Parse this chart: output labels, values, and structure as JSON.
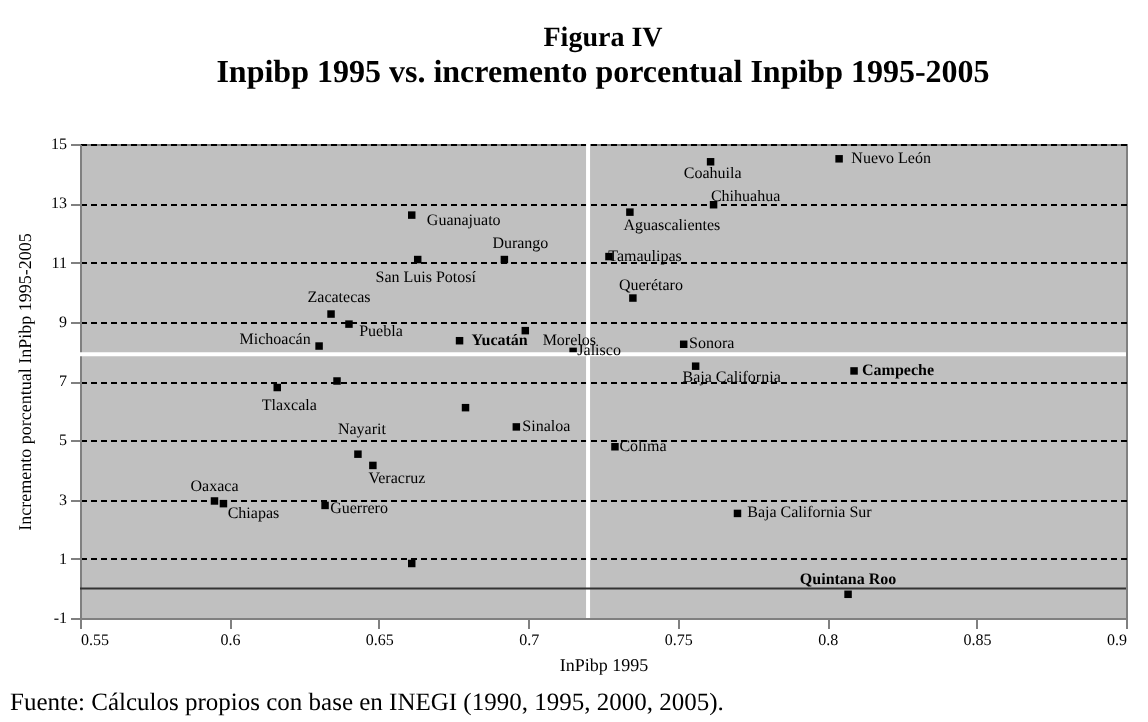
{
  "chart_data": {
    "type": "scatter",
    "title": "Figura IV",
    "subtitle": "Inpibp 1995 vs. incremento porcentual Inpibp 1995-2005",
    "xlabel": "InPibp 1995",
    "ylabel": "Incremento porcentual InPibp 1995-2005",
    "x": [
      0.661,
      0.663,
      0.692,
      0.634,
      0.64,
      0.63,
      0.677,
      0.699,
      0.715,
      0.616,
      0.696,
      0.643,
      0.648,
      0.595,
      0.598,
      0.632,
      0.761,
      0.804,
      0.762,
      0.734,
      0.727,
      0.735,
      0.752,
      0.756,
      0.809,
      0.729,
      0.77,
      0.807,
      0.636,
      0.679,
      0.661
    ],
    "series": [
      {
        "color": "#000000",
        "values": [
          12.6,
          11.1,
          11.1,
          9.26,
          8.92,
          8.18,
          8.36,
          8.7,
          8.0,
          6.78,
          5.45,
          4.53,
          4.15,
          2.95,
          2.86,
          2.8,
          14.4,
          14.5,
          12.95,
          12.7,
          11.2,
          9.8,
          8.24,
          7.5,
          7.34,
          4.78,
          2.53,
          -0.2,
          7.0,
          6.1,
          0.84
        ]
      }
    ],
    "marker": "square",
    "xlim": [
      0.55,
      0.9
    ],
    "xticks": [
      0.55,
      0.6,
      0.65,
      0.7,
      0.75,
      0.8,
      0.85,
      0.9
    ],
    "ylim": [
      -1,
      15
    ],
    "yticks": [
      -1,
      1,
      3,
      5,
      7,
      9,
      11,
      13,
      15
    ],
    "grid": "y",
    "ref_lines": [
      {
        "axis": "x",
        "value": 0.72,
        "color": "#ffffff"
      },
      {
        "axis": "y",
        "value": 7.9,
        "color": "#ffffff"
      },
      {
        "axis": "y",
        "value": 0,
        "color": "#333333"
      }
    ],
    "annotations": [
      {
        "text": "Guanajuato",
        "x": 0.661,
        "y": 12.6
      },
      {
        "text": "San Luis Potosí",
        "x": 0.663,
        "y": 11.1
      },
      {
        "text": "Durango",
        "x": 0.692,
        "y": 11.1
      },
      {
        "text": "Zacatecas",
        "x": 0.634,
        "y": 9.26
      },
      {
        "text": "Puebla",
        "x": 0.64,
        "y": 8.92
      },
      {
        "text": "Michoacán",
        "x": 0.63,
        "y": 8.18
      },
      {
        "text": "Yucatán",
        "x": 0.677,
        "y": 8.36
      },
      {
        "text": "Morelos",
        "x": 0.699,
        "y": 8.7
      },
      {
        "text": "Jalisco",
        "x": 0.715,
        "y": 8.0
      },
      {
        "text": "Tlaxcala",
        "x": 0.616,
        "y": 6.78
      },
      {
        "text": "Sinaloa",
        "x": 0.696,
        "y": 5.45
      },
      {
        "text": "Nayarit",
        "x": 0.643,
        "y": 4.53
      },
      {
        "text": "Veracruz",
        "x": 0.648,
        "y": 4.15
      },
      {
        "text": "Oaxaca",
        "x": 0.595,
        "y": 2.95
      },
      {
        "text": "Chiapas",
        "x": 0.598,
        "y": 2.86
      },
      {
        "text": "Guerrero",
        "x": 0.632,
        "y": 2.8
      },
      {
        "text": "Coahuila",
        "x": 0.761,
        "y": 14.4
      },
      {
        "text": "Nuevo León",
        "x": 0.804,
        "y": 14.5
      },
      {
        "text": "Chihuahua",
        "x": 0.762,
        "y": 12.95
      },
      {
        "text": "Aguascalientes",
        "x": 0.734,
        "y": 12.7
      },
      {
        "text": "Tamaulipas",
        "x": 0.727,
        "y": 11.2
      },
      {
        "text": "Querétaro",
        "x": 0.735,
        "y": 9.8
      },
      {
        "text": "Sonora",
        "x": 0.752,
        "y": 8.24
      },
      {
        "text": "Baja California",
        "x": 0.756,
        "y": 7.5
      },
      {
        "text": "Campeche",
        "x": 0.809,
        "y": 7.34
      },
      {
        "text": "Colima",
        "x": 0.729,
        "y": 4.78
      },
      {
        "text": "Baja California Sur",
        "x": 0.77,
        "y": 2.53
      },
      {
        "text": "Quintana Roo",
        "x": 0.807,
        "y": -0.2
      },
      "Fuente: Cálculos propios con base en INEGI (1990, 1995, 2000, 2005)."
    ]
  }
}
